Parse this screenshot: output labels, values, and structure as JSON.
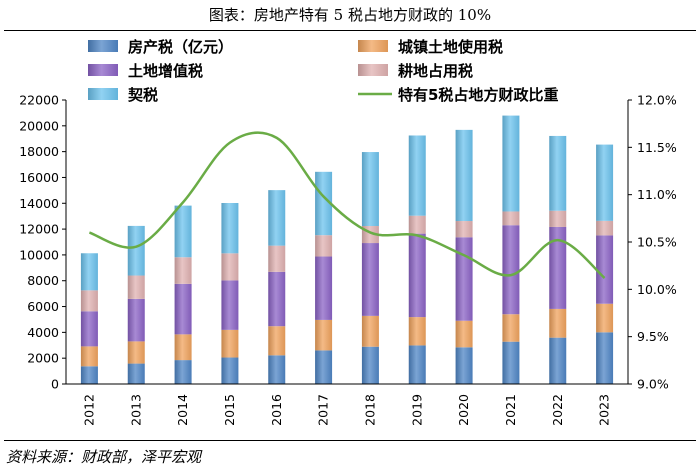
{
  "title": "图表：房地产特有 5 税占地方财政的 10%",
  "source": "资料来源：财政部，泽平宏观",
  "colors": {
    "property_tax": "#4f86c6",
    "urban_land_use_tax": "#f0a35e",
    "land_appreciation_tax": "#8b63c6",
    "farmland_occupation_tax": "#e0b1b1",
    "deed_tax": "#6cc3ee",
    "share_line": "#6aac46"
  },
  "chart_data": {
    "type": "bar",
    "stacked": true,
    "categories": [
      "2012",
      "2013",
      "2014",
      "2015",
      "2016",
      "2017",
      "2018",
      "2019",
      "2020",
      "2021",
      "2022",
      "2023"
    ],
    "series": [
      {
        "key": "property_tax",
        "name": "房产税（亿元）",
        "values": [
          1372,
          1582,
          1852,
          2051,
          2221,
          2604,
          2889,
          2988,
          2842,
          3278,
          3590,
          4004
        ]
      },
      {
        "key": "urban_land_use_tax",
        "name": "城镇土地使用税",
        "values": [
          1542,
          1719,
          1993,
          2142,
          2256,
          2360,
          2388,
          2195,
          2058,
          2126,
          2226,
          2213
        ]
      },
      {
        "key": "land_appreciation_tax",
        "name": "土地增值税",
        "values": [
          2719,
          3294,
          3914,
          3832,
          4212,
          4911,
          5642,
          6465,
          6468,
          6896,
          6349,
          5294
        ]
      },
      {
        "key": "farmland_occupation_tax",
        "name": "耕地占用税",
        "values": [
          1621,
          1808,
          2059,
          2097,
          2029,
          1652,
          1319,
          1390,
          1257,
          1065,
          1257,
          1127
        ]
      },
      {
        "key": "deed_tax",
        "name": "契税",
        "values": [
          2874,
          3844,
          4001,
          3899,
          4300,
          4910,
          5730,
          6213,
          7061,
          7428,
          5794,
          5908
        ]
      }
    ],
    "line_series": {
      "name": "特有5税占地方财政比重",
      "values": [
        10.6,
        10.45,
        10.92,
        11.55,
        11.6,
        10.98,
        10.6,
        10.57,
        10.36,
        10.15,
        10.52,
        10.12
      ]
    },
    "y_left": {
      "min": 0,
      "max": 22000,
      "step": 2000,
      "ticks": [
        "0",
        "2000",
        "4000",
        "6000",
        "8000",
        "10000",
        "12000",
        "14000",
        "16000",
        "18000",
        "20000",
        "22000"
      ]
    },
    "y_right": {
      "min": 9.0,
      "max": 12.0,
      "step": 0.5,
      "ticks": [
        "9.0%",
        "9.5%",
        "10.0%",
        "10.5%",
        "11.0%",
        "11.5%",
        "12.0%"
      ]
    },
    "legend_position": "top"
  }
}
